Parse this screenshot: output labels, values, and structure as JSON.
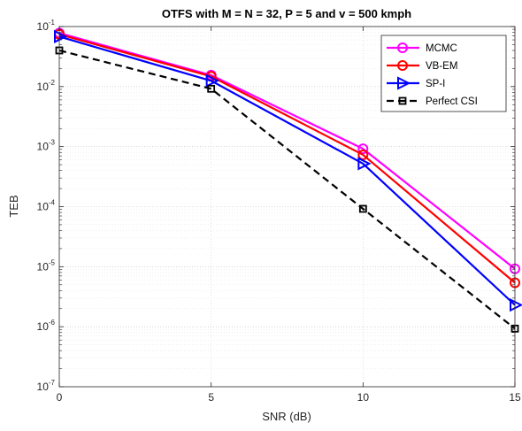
{
  "chart_data": {
    "type": "line",
    "title": "OTFS with M = N = 32, P = 5 and v = 500 kmph",
    "xlabel": "SNR (dB)",
    "ylabel": "TEB",
    "x": [
      0,
      5,
      10,
      15
    ],
    "xlim": [
      0,
      15
    ],
    "xticks": [
      "0",
      "5",
      "10",
      "15"
    ],
    "ylim": [
      1e-07,
      0.1
    ],
    "yscale": "log",
    "yticks": [
      {
        "base": "10",
        "exp": "-7"
      },
      {
        "base": "10",
        "exp": "-6"
      },
      {
        "base": "10",
        "exp": "-5"
      },
      {
        "base": "10",
        "exp": "-4"
      },
      {
        "base": "10",
        "exp": "-3"
      },
      {
        "base": "10",
        "exp": "-2"
      },
      {
        "base": "10",
        "exp": "-1"
      }
    ],
    "grid": true,
    "legend_position": "top-right",
    "series": [
      {
        "name": "MCMC",
        "values": [
          0.078,
          0.0155,
          0.00092,
          9.2e-06
        ],
        "color": "#ff00ff",
        "marker": "circle",
        "dash": "solid"
      },
      {
        "name": "VB-EM",
        "values": [
          0.074,
          0.0148,
          0.00073,
          5.4e-06
        ],
        "color": "#ff0000",
        "marker": "circle",
        "dash": "solid"
      },
      {
        "name": "SP-I",
        "values": [
          0.068,
          0.0125,
          0.00052,
          2.3e-06
        ],
        "color": "#0000ff",
        "marker": "triangle-right",
        "dash": "solid"
      },
      {
        "name": "Perfect CSI",
        "values": [
          0.04,
          0.0092,
          9.2e-05,
          9.3e-07
        ],
        "color": "#000000",
        "marker": "square",
        "dash": "dashed"
      }
    ]
  }
}
